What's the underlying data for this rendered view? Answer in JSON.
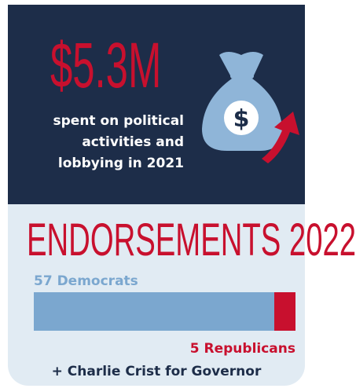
{
  "top": {
    "amount": "$5.3M",
    "spent_lines": [
      "spent on political",
      "activities and",
      "lobbying in 2021"
    ]
  },
  "icons": {
    "money_bag": "money-bag-icon",
    "arrow": "up-arrow-icon"
  },
  "endorsements": {
    "title": "ENDORSEMENTS 2022",
    "democrats_label": "57 Democrats",
    "democrats_count": 57,
    "republicans_label": "5 Republicans",
    "republicans_count": 5,
    "governor_label": "+ Charlie Crist for Governor"
  },
  "colors": {
    "navy": "#1d2d49",
    "red": "#c8102e",
    "blue": "#7ba7cf",
    "light_bg": "#e1ebf3"
  }
}
